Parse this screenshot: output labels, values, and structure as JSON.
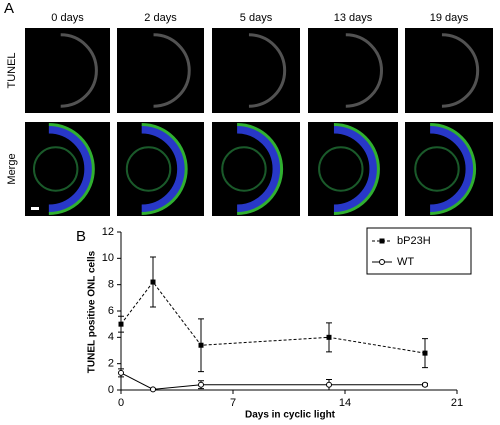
{
  "panel_a": {
    "label": "A",
    "columns": [
      "0 days",
      "2 days",
      "5 days",
      "13 days",
      "19 days"
    ],
    "rows": [
      "TUNEL",
      "Merge"
    ]
  },
  "chart_data": {
    "type": "line",
    "panel_label": "B",
    "xlabel": "Days in cyclic light",
    "ylabel": "TUNEL positive ONL cells",
    "x": [
      0,
      2,
      5,
      13,
      19
    ],
    "series": [
      {
        "name": "bP23H",
        "color": "#000000",
        "dashed": true,
        "marker": "square",
        "values": [
          5,
          8.2,
          3.4,
          4.0,
          2.8
        ],
        "errors": [
          0.6,
          1.9,
          2.0,
          1.1,
          1.1
        ]
      },
      {
        "name": "WT",
        "color": "#000000",
        "dashed": false,
        "marker": "circle",
        "values": [
          1.3,
          0.05,
          0.4,
          0.4,
          0.4
        ],
        "errors": [
          0.3,
          0.05,
          0.3,
          0.4,
          0.1
        ]
      }
    ],
    "xlim": [
      0,
      21
    ],
    "xticks": [
      0,
      7,
      14,
      21
    ],
    "ylim": [
      0,
      12
    ],
    "yticks": [
      0,
      2,
      4,
      6,
      8,
      10,
      12
    ],
    "legend": "top-right"
  }
}
